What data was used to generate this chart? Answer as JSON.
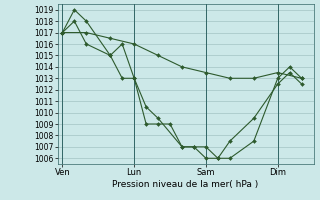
{
  "title": "",
  "xlabel": "Pression niveau de la mer( hPa )",
  "ylabel": "",
  "bg_color": "#cce8e8",
  "line_color": "#2d5a2d",
  "grid_color": "#99bbbb",
  "vline_color": "#336666",
  "ylim": [
    1005.5,
    1019.5
  ],
  "yticks": [
    1006,
    1007,
    1008,
    1009,
    1010,
    1011,
    1012,
    1013,
    1014,
    1015,
    1016,
    1017,
    1018,
    1019
  ],
  "day_positions": [
    0,
    3,
    6,
    9
  ],
  "day_labels": [
    "Ven",
    "Lun",
    "Sam",
    "Dim"
  ],
  "xlim": [
    -0.2,
    10.5
  ],
  "lines": [
    {
      "x": [
        0,
        0.5,
        1,
        2,
        2.5,
        3,
        3.5,
        4,
        4.5,
        5,
        5.5,
        6,
        6.5,
        7,
        8,
        9,
        9.5,
        10
      ],
      "y": [
        1017,
        1019,
        1018,
        1015,
        1013,
        1013,
        1009,
        1009,
        1009,
        1007,
        1007,
        1006,
        1006,
        1007.5,
        1009.5,
        1012.5,
        1013.5,
        1012.5
      ]
    },
    {
      "x": [
        0,
        0.5,
        1,
        2,
        2.5,
        3,
        3.5,
        4,
        5,
        5.5,
        6,
        6.5,
        7,
        8,
        9,
        9.5,
        10
      ],
      "y": [
        1017,
        1018,
        1016,
        1015,
        1016,
        1013,
        1010.5,
        1009.5,
        1007,
        1007,
        1007,
        1006,
        1006,
        1007.5,
        1013,
        1014,
        1013
      ]
    },
    {
      "x": [
        0,
        1,
        2,
        3,
        4,
        5,
        6,
        7,
        8,
        9,
        10
      ],
      "y": [
        1017,
        1017,
        1016.5,
        1016,
        1015,
        1014,
        1013.5,
        1013,
        1013,
        1013.5,
        1013
      ]
    }
  ]
}
